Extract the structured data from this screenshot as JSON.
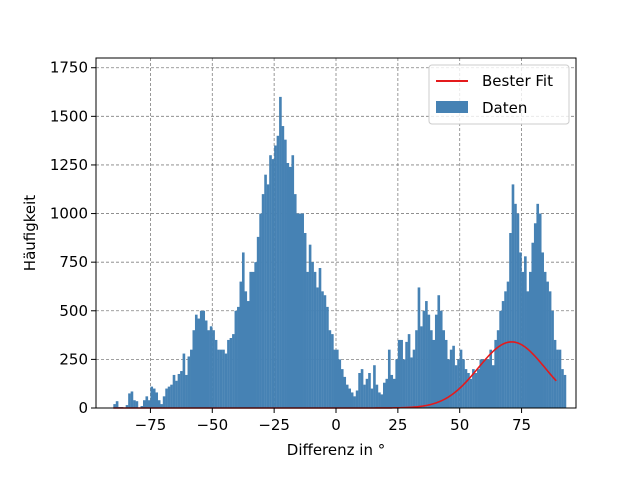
{
  "chart_data": {
    "type": "bar",
    "xlabel": "Differenz in °",
    "ylabel": "Häufigkeit",
    "xlim": [
      -97,
      97
    ],
    "ylim": [
      0,
      1800
    ],
    "xticks": [
      -75,
      -50,
      -25,
      0,
      25,
      50,
      75
    ],
    "xtick_labels": [
      "−75",
      "−50",
      "−25",
      "0",
      "25",
      "50",
      "75"
    ],
    "yticks": [
      0,
      250,
      500,
      750,
      1000,
      1250,
      1500,
      1750
    ],
    "ytick_labels": [
      "0",
      "250",
      "500",
      "750",
      "1000",
      "1250",
      "1500",
      "1750"
    ],
    "grid": true,
    "legend_position": "top-right",
    "bin_start": -90,
    "bin_width": 1,
    "series": [
      {
        "name": "Daten",
        "color": "#4682b4",
        "values": [
          20,
          35,
          5,
          5,
          0,
          15,
          75,
          85,
          40,
          35,
          0,
          10,
          40,
          60,
          40,
          110,
          100,
          80,
          40,
          20,
          60,
          100,
          110,
          120,
          170,
          140,
          175,
          190,
          280,
          170,
          265,
          300,
          400,
          480,
          460,
          500,
          500,
          450,
          400,
          420,
          400,
          350,
          300,
          300,
          300,
          280,
          350,
          360,
          380,
          500,
          520,
          650,
          800,
          600,
          550,
          700,
          700,
          750,
          880,
          1000,
          1100,
          1200,
          1150,
          1300,
          1280,
          1350,
          1400,
          1600,
          1450,
          1380,
          1260,
          1240,
          1300,
          1100,
          1000,
          1000,
          1000,
          900,
          700,
          840,
          750,
          700,
          620,
          720,
          600,
          580,
          520,
          400,
          380,
          300,
          300,
          250,
          200,
          160,
          120,
          100,
          80,
          60,
          90,
          180,
          200,
          120,
          150,
          180,
          100,
          220,
          120,
          80,
          70,
          130,
          150,
          300,
          170,
          150,
          250,
          350,
          350,
          250,
          340,
          380,
          260,
          300,
          400,
          620,
          420,
          500,
          550,
          480,
          400,
          350,
          480,
          580,
          500,
          400,
          350,
          250,
          300,
          320,
          220,
          250,
          300,
          250,
          200,
          180,
          150,
          200,
          180,
          200,
          250,
          250,
          250,
          250,
          300,
          220,
          350,
          400,
          500,
          550,
          600,
          650,
          900,
          1150,
          1050,
          1000,
          800,
          700,
          780,
          600,
          700,
          850,
          950,
          1050,
          1000,
          800,
          700,
          650,
          600,
          500,
          350,
          300,
          300,
          200,
          170
        ]
      },
      {
        "name": "Bester Fit",
        "type": "line",
        "color": "#e41a1c",
        "curve": {
          "amplitude": 340,
          "mean": 71,
          "sigma": 13.5,
          "x_start": -90,
          "x_end": 89
        }
      }
    ]
  }
}
